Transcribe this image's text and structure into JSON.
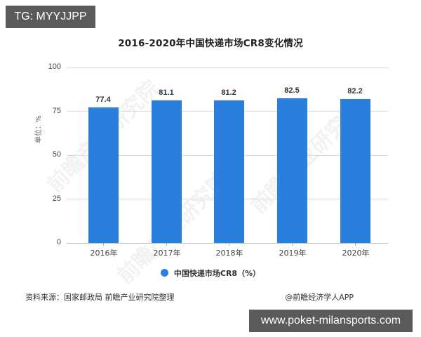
{
  "badges": {
    "top_left": "TG: MYYJJPP",
    "bottom_right": "www.poket-milansports.com"
  },
  "chart_data": {
    "type": "bar",
    "title": "2016-2020年中国快递市场CR8变化情况",
    "categories": [
      "2016年",
      "2017年",
      "2018年",
      "2019年",
      "2020年"
    ],
    "series": [
      {
        "name": "中国快递市场CR8（%）",
        "values": [
          77.4,
          81.1,
          81.2,
          82.5,
          82.2
        ],
        "color": "#2a7fdc"
      }
    ],
    "value_labels": [
      "77.4",
      "81.1",
      "81.2",
      "82.5",
      "82.2"
    ],
    "xlabel": "",
    "ylabel": "单位：%",
    "ylim": [
      0,
      100
    ],
    "yticks": [
      "0",
      "25",
      "50",
      "75",
      "100"
    ],
    "grid": true,
    "legend_position": "bottom"
  },
  "legend": {
    "label": "中国快递市场CR8（%）",
    "color": "#2a7fdc"
  },
  "footer": {
    "source": "资料来源：国家邮政局 前瞻产业研究院整理",
    "credit": "@前瞻经济学人APP"
  },
  "watermark": "前瞻产业研究院"
}
